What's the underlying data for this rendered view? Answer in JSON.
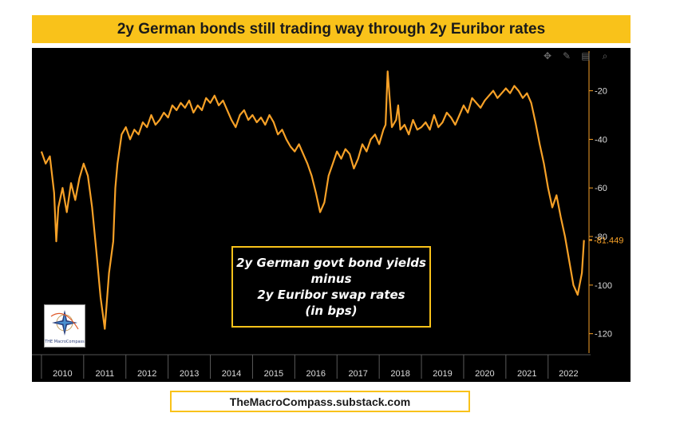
{
  "title": "2y German bonds still trading way through 2y Euribor rates",
  "footer": "TheMacroCompass.substack.com",
  "annotation": {
    "lines": [
      "2y German govt bond yields",
      "minus",
      "2y Euribor swap rates",
      "(in bps)"
    ]
  },
  "logo": {
    "text": "THE MacroCompass"
  },
  "toolbar": {
    "icons": [
      "move-icon",
      "draw-icon",
      "save-icon",
      "zoom-icon"
    ]
  },
  "colors": {
    "banner": "#f9c21a",
    "line": "#f7a127",
    "background": "#000000",
    "axis": "#f7a127"
  },
  "current_value_label": "-81.449",
  "chart_data": {
    "type": "line",
    "title": "",
    "xlabel": "",
    "ylabel": "",
    "ylim": [
      -128,
      -5
    ],
    "xlim": [
      2009.85,
      2022.95
    ],
    "x_ticks": [
      "2010",
      "2011",
      "2012",
      "2013",
      "2014",
      "2015",
      "2016",
      "2017",
      "2018",
      "2019",
      "2020",
      "2021",
      "2022"
    ],
    "y_ticks": [
      -20,
      -40,
      -60,
      -80,
      -100,
      -120
    ],
    "y_tick_labels": [
      "-20",
      "-40",
      "-60",
      "-80",
      "-100",
      "-120"
    ],
    "last_value": -81.449,
    "series": [
      {
        "x": [
          2010.0,
          2010.1,
          2010.2,
          2010.3,
          2010.35,
          2010.4,
          2010.5,
          2010.6,
          2010.7,
          2010.8,
          2010.9,
          2011.0,
          2011.1,
          2011.2,
          2011.3,
          2011.4,
          2011.5,
          2011.6,
          2011.7,
          2011.75,
          2011.8,
          2011.9,
          2012.0,
          2012.1,
          2012.2,
          2012.3,
          2012.4,
          2012.5,
          2012.6,
          2012.7,
          2012.8,
          2012.9,
          2013.0,
          2013.1,
          2013.2,
          2013.3,
          2013.4,
          2013.5,
          2013.6,
          2013.7,
          2013.8,
          2013.9,
          2014.0,
          2014.1,
          2014.2,
          2014.3,
          2014.4,
          2014.5,
          2014.6,
          2014.7,
          2014.8,
          2014.9,
          2015.0,
          2015.1,
          2015.2,
          2015.3,
          2015.4,
          2015.5,
          2015.6,
          2015.7,
          2015.8,
          2015.9,
          2016.0,
          2016.1,
          2016.2,
          2016.3,
          2016.4,
          2016.5,
          2016.6,
          2016.7,
          2016.8,
          2016.9,
          2017.0,
          2017.1,
          2017.2,
          2017.3,
          2017.4,
          2017.5,
          2017.6,
          2017.7,
          2017.8,
          2017.9,
          2018.0,
          2018.1,
          2018.15,
          2018.2,
          2018.3,
          2018.4,
          2018.45,
          2018.5,
          2018.6,
          2018.7,
          2018.8,
          2018.9,
          2019.0,
          2019.1,
          2019.2,
          2019.3,
          2019.4,
          2019.5,
          2019.6,
          2019.7,
          2019.8,
          2019.9,
          2020.0,
          2020.1,
          2020.2,
          2020.3,
          2020.4,
          2020.5,
          2020.6,
          2020.7,
          2020.8,
          2020.9,
          2021.0,
          2021.1,
          2021.2,
          2021.3,
          2021.4,
          2021.5,
          2021.6,
          2021.7,
          2021.8,
          2021.9,
          2022.0,
          2022.1,
          2022.2,
          2022.3,
          2022.4,
          2022.5,
          2022.6,
          2022.7,
          2022.8,
          2022.85
        ],
        "y": [
          -45,
          -50,
          -47,
          -62,
          -82,
          -68,
          -60,
          -70,
          -58,
          -65,
          -56,
          -50,
          -55,
          -68,
          -86,
          -105,
          -118,
          -95,
          -82,
          -60,
          -50,
          -38,
          -35,
          -40,
          -36,
          -38,
          -33,
          -35,
          -30,
          -34,
          -32,
          -29,
          -31,
          -26,
          -28,
          -25,
          -27,
          -24,
          -29,
          -26,
          -28,
          -23,
          -25,
          -22,
          -26,
          -24,
          -28,
          -32,
          -35,
          -30,
          -28,
          -32,
          -30,
          -33,
          -31,
          -34,
          -30,
          -33,
          -38,
          -36,
          -40,
          -43,
          -45,
          -42,
          -46,
          -50,
          -55,
          -62,
          -70,
          -66,
          -55,
          -50,
          -45,
          -48,
          -44,
          -46,
          -52,
          -48,
          -42,
          -45,
          -40,
          -38,
          -42,
          -36,
          -34,
          -12,
          -35,
          -32,
          -26,
          -36,
          -34,
          -38,
          -32,
          -36,
          -35,
          -33,
          -36,
          -30,
          -35,
          -33,
          -29,
          -31,
          -34,
          -30,
          -26,
          -29,
          -23,
          -25,
          -27,
          -24,
          -22,
          -20,
          -23,
          -21,
          -19,
          -21,
          -18,
          -20,
          -23,
          -21,
          -25,
          -33,
          -42,
          -50,
          -60,
          -68,
          -63,
          -72,
          -80,
          -90,
          -100,
          -104,
          -95,
          -81.449
        ]
      }
    ]
  }
}
